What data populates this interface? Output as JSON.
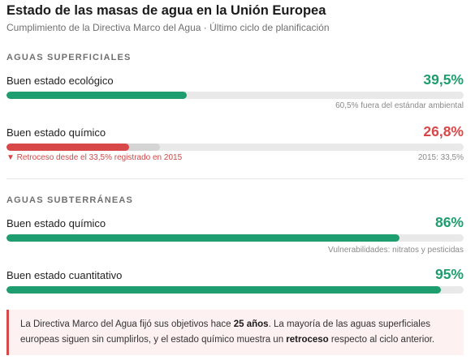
{
  "header": {
    "title": "Estado de las masas de agua en la Unión Europea",
    "subtitle": "Cumplimiento de la Directiva Marco del Agua · Último ciclo de planificación"
  },
  "sections": [
    {
      "heading": "AGUAS SUPERFICIALES",
      "metrics": [
        {
          "label": "Buen estado ecológico",
          "value_text": "39,5%",
          "value": 39.5,
          "color": "#1e9e6e",
          "note_right": "60,5% fuera del estándar ambiental",
          "note_left": ""
        },
        {
          "label": "Buen estado químico",
          "value_text": "26,8%",
          "value": 26.8,
          "reference_value": 33.5,
          "color": "#d94848",
          "note_left": "▼ Retroceso desde el 33,5% registrado en 2015",
          "note_right": "2015: 33,5%"
        }
      ]
    },
    {
      "heading": "AGUAS SUBTERRÁNEAS",
      "metrics": [
        {
          "label": "Buen estado químico",
          "value_text": "86%",
          "value": 86,
          "color": "#1e9e6e",
          "note_right": "Vulnerabilidades: nitratos y pesticidas",
          "note_left": ""
        },
        {
          "label": "Buen estado cuantitativo",
          "value_text": "95%",
          "value": 95,
          "color": "#1e9e6e",
          "note_right": "",
          "note_left": ""
        }
      ]
    }
  ],
  "callout": {
    "part1": "La Directiva Marco del Agua fijó sus objetivos hace ",
    "bold1": "25 años",
    "part2": ". La mayoría de las aguas superficiales europeas siguen sin cumplirlos, y el estado químico muestra un ",
    "bold2": "retroceso",
    "part3": " respecto al ciclo anterior.",
    "accent_color": "#d94848"
  }
}
